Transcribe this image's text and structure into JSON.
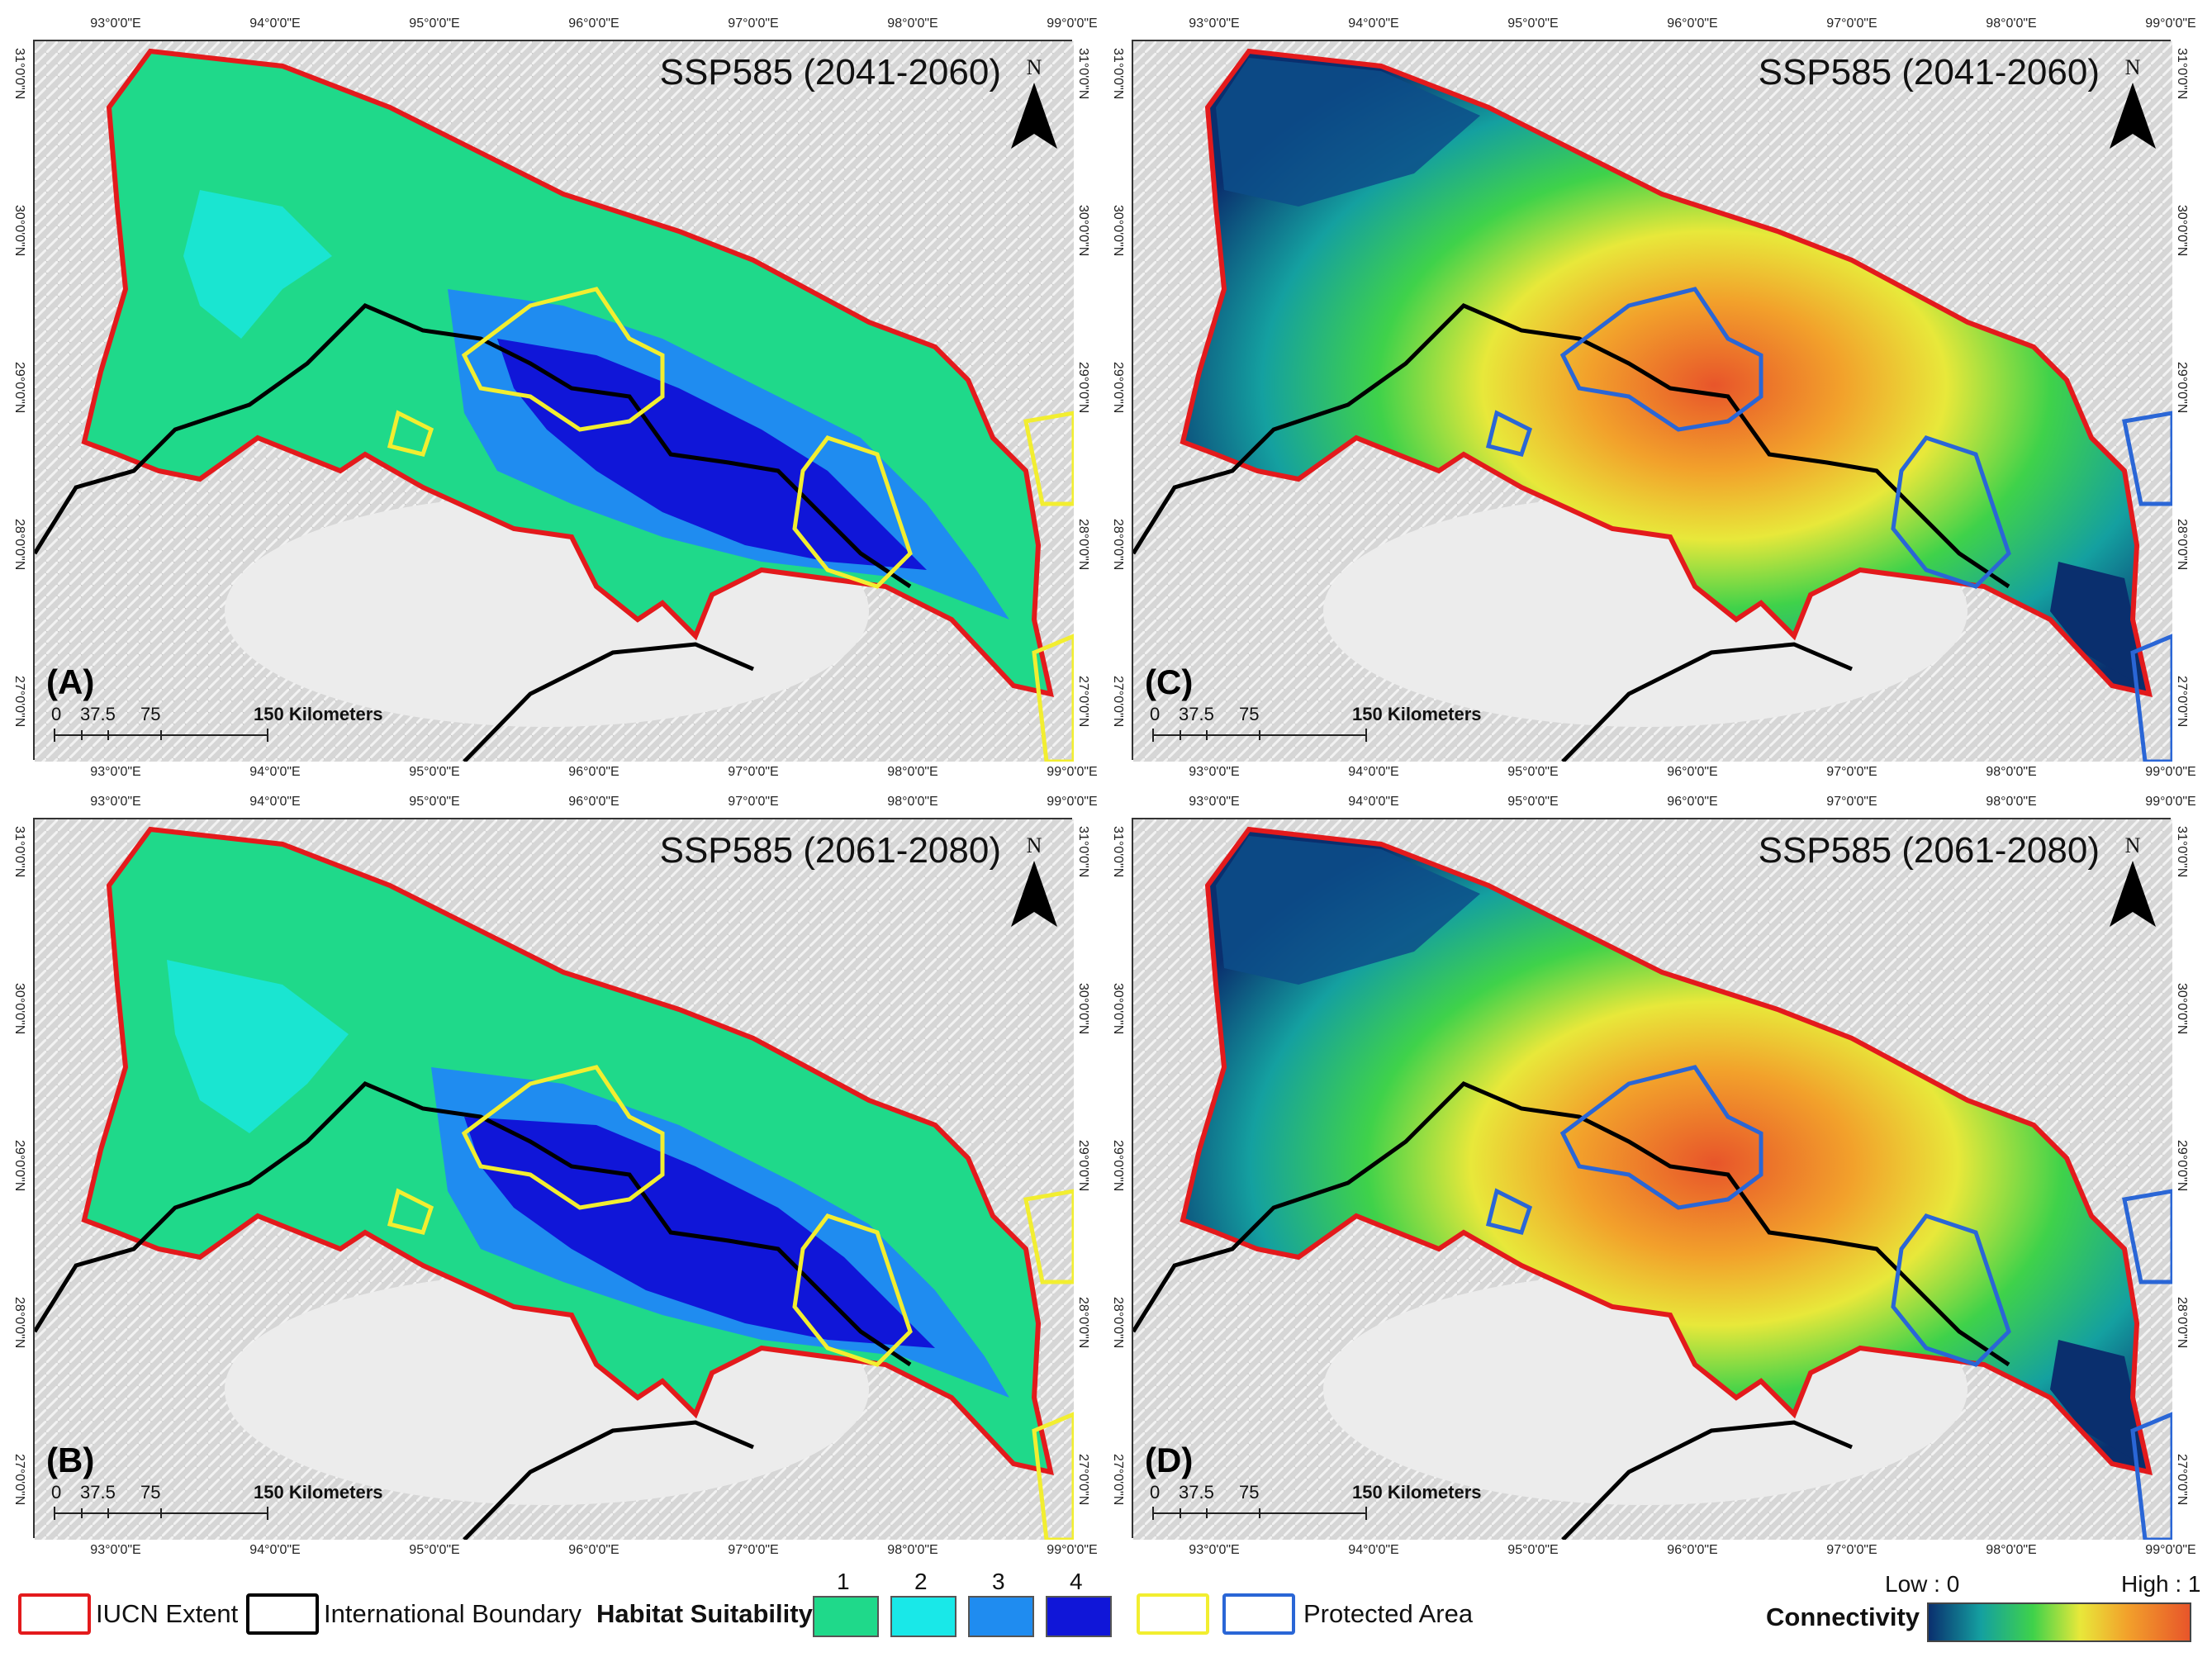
{
  "panels": [
    {
      "letter": "(A)",
      "scenario": "SSP585 (2041-2060)",
      "kind": "suitability"
    },
    {
      "letter": "(C)",
      "scenario": "SSP585 (2041-2060)",
      "kind": "connectivity"
    },
    {
      "letter": "(B)",
      "scenario": "SSP585 (2061-2080)",
      "kind": "suitability"
    },
    {
      "letter": "(D)",
      "scenario": "SSP585 (2061-2080)",
      "kind": "connectivity"
    }
  ],
  "graticule": {
    "lon_labels": [
      "93°0'0\"E",
      "94°0'0\"E",
      "95°0'0\"E",
      "96°0'0\"E",
      "97°0'0\"E",
      "98°0'0\"E",
      "99°0'0\"E"
    ],
    "lat_labels": [
      "31°0'0\"N",
      "30°0'0\"N",
      "29°0'0\"N",
      "28°0'0\"N",
      "27°0'0\"N"
    ]
  },
  "north_arrow": {
    "label": "N"
  },
  "scale_bar": {
    "ticks": [
      "0",
      "37.5",
      "75"
    ],
    "end_label": "150 Kilometers"
  },
  "legend": {
    "iucn_label": "IUCN Extent",
    "boundary_label": "International Boundary",
    "suitability_title": "Habitat Suitability",
    "suitability_classes": [
      {
        "label": "1",
        "color": "#1fd98a"
      },
      {
        "label": "2",
        "color": "#19e8e8"
      },
      {
        "label": "3",
        "color": "#1f8cf0"
      },
      {
        "label": "4",
        "color": "#1016d8"
      }
    ],
    "protected_label": "Protected Area",
    "connectivity_title": "Connectivity",
    "connectivity_low": "Low : 0",
    "connectivity_high": "High : 1"
  },
  "colors": {
    "iucn": "#e31a1c",
    "boundary": "#000000",
    "protected_yellow": "#f2ee30",
    "protected_blue": "#2a66d6"
  }
}
